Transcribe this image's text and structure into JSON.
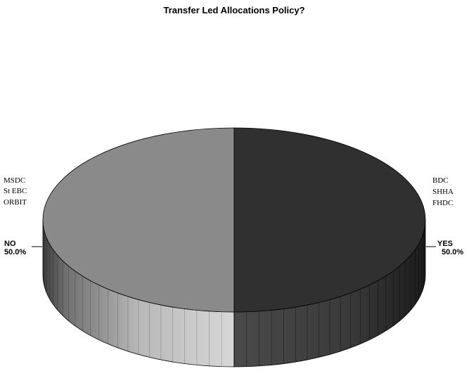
{
  "chart_data": {
    "type": "pie",
    "title": "Transfer Led Allocations Policy?",
    "slices": [
      {
        "label": "YES",
        "value": 50.0,
        "pct_label": "50.0%",
        "members": [
          "BDC",
          "SHHA",
          "FHDC"
        ],
        "color": "#303030"
      },
      {
        "label": "NO",
        "value": 50.0,
        "pct_label": "50.0%",
        "members": [
          "MSDC",
          "St EBC",
          "ORBIT"
        ],
        "color": "#8a8a8a"
      }
    ],
    "style": "3d"
  }
}
